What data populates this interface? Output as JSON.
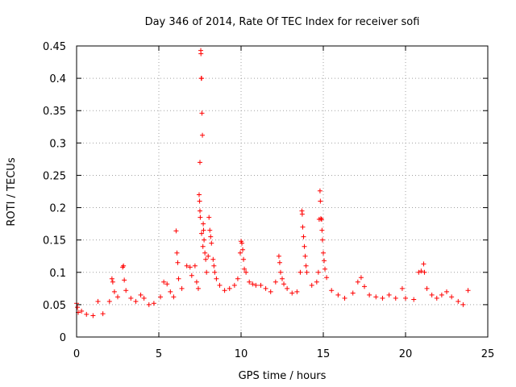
{
  "chart_data": {
    "type": "scatter",
    "title": "Day 346 of 2014, Rate Of TEC Index for receiver sofi",
    "xlabel": "GPS time / hours",
    "ylabel": "ROTI / TECUs",
    "xlim": [
      0,
      25
    ],
    "ylim": [
      0,
      0.45
    ],
    "x_ticks": [
      0,
      5,
      10,
      15,
      20,
      25
    ],
    "x_tick_labels": [
      "0",
      "5",
      "10",
      "15",
      "20",
      "25"
    ],
    "y_ticks": [
      0,
      0.05,
      0.1,
      0.15,
      0.2,
      0.25,
      0.3,
      0.35,
      0.4,
      0.45
    ],
    "y_tick_labels": [
      "0",
      "0.05",
      "0.1",
      "0.15",
      "0.2",
      "0.25",
      "0.3",
      "0.35",
      "0.4",
      "0.45"
    ],
    "grid": true,
    "marker": "+",
    "color": "#ff0000",
    "series": [
      {
        "name": "ROTI",
        "points": [
          [
            0.0,
            0.052
          ],
          [
            0.05,
            0.046
          ],
          [
            0.1,
            0.038
          ],
          [
            0.3,
            0.04
          ],
          [
            0.6,
            0.035
          ],
          [
            1.0,
            0.033
          ],
          [
            1.3,
            0.055
          ],
          [
            1.6,
            0.036
          ],
          [
            2.0,
            0.055
          ],
          [
            2.15,
            0.09
          ],
          [
            2.2,
            0.085
          ],
          [
            2.3,
            0.07
          ],
          [
            2.5,
            0.062
          ],
          [
            2.8,
            0.108
          ],
          [
            2.85,
            0.11
          ],
          [
            2.9,
            0.088
          ],
          [
            3.0,
            0.072
          ],
          [
            3.3,
            0.06
          ],
          [
            3.6,
            0.055
          ],
          [
            3.9,
            0.065
          ],
          [
            4.1,
            0.06
          ],
          [
            4.4,
            0.05
          ],
          [
            4.7,
            0.052
          ],
          [
            5.1,
            0.062
          ],
          [
            5.3,
            0.085
          ],
          [
            5.5,
            0.082
          ],
          [
            5.7,
            0.07
          ],
          [
            5.9,
            0.062
          ],
          [
            6.05,
            0.164
          ],
          [
            6.1,
            0.13
          ],
          [
            6.15,
            0.115
          ],
          [
            6.2,
            0.09
          ],
          [
            6.4,
            0.075
          ],
          [
            6.7,
            0.11
          ],
          [
            6.9,
            0.108
          ],
          [
            7.0,
            0.095
          ],
          [
            7.2,
            0.11
          ],
          [
            7.3,
            0.085
          ],
          [
            7.4,
            0.075
          ],
          [
            7.45,
            0.22
          ],
          [
            7.48,
            0.21
          ],
          [
            7.5,
            0.195
          ],
          [
            7.52,
            0.185
          ],
          [
            7.55,
            0.443
          ],
          [
            7.56,
            0.438
          ],
          [
            7.58,
            0.4
          ],
          [
            7.6,
            0.4
          ],
          [
            7.62,
            0.346
          ],
          [
            7.65,
            0.312
          ],
          [
            7.5,
            0.27
          ],
          [
            7.7,
            0.175
          ],
          [
            7.72,
            0.165
          ],
          [
            7.75,
            0.15
          ],
          [
            7.8,
            0.13
          ],
          [
            7.85,
            0.12
          ],
          [
            7.6,
            0.16
          ],
          [
            7.68,
            0.14
          ],
          [
            7.9,
            0.1
          ],
          [
            8.0,
            0.125
          ],
          [
            8.05,
            0.185
          ],
          [
            8.1,
            0.165
          ],
          [
            8.15,
            0.155
          ],
          [
            8.2,
            0.145
          ],
          [
            8.3,
            0.12
          ],
          [
            8.35,
            0.11
          ],
          [
            8.4,
            0.1
          ],
          [
            8.5,
            0.09
          ],
          [
            8.7,
            0.08
          ],
          [
            9.0,
            0.072
          ],
          [
            9.3,
            0.075
          ],
          [
            9.6,
            0.08
          ],
          [
            9.8,
            0.09
          ],
          [
            9.95,
            0.13
          ],
          [
            10.0,
            0.148
          ],
          [
            10.05,
            0.145
          ],
          [
            10.1,
            0.135
          ],
          [
            10.15,
            0.12
          ],
          [
            10.2,
            0.105
          ],
          [
            10.3,
            0.1
          ],
          [
            10.5,
            0.085
          ],
          [
            10.7,
            0.082
          ],
          [
            10.9,
            0.08
          ],
          [
            11.2,
            0.08
          ],
          [
            11.5,
            0.075
          ],
          [
            11.8,
            0.07
          ],
          [
            12.1,
            0.085
          ],
          [
            12.3,
            0.125
          ],
          [
            12.35,
            0.115
          ],
          [
            12.4,
            0.1
          ],
          [
            12.5,
            0.09
          ],
          [
            12.6,
            0.082
          ],
          [
            12.8,
            0.075
          ],
          [
            13.1,
            0.068
          ],
          [
            13.4,
            0.07
          ],
          [
            13.6,
            0.1
          ],
          [
            13.7,
            0.195
          ],
          [
            13.72,
            0.19
          ],
          [
            13.75,
            0.17
          ],
          [
            13.8,
            0.155
          ],
          [
            13.85,
            0.14
          ],
          [
            13.9,
            0.125
          ],
          [
            13.95,
            0.11
          ],
          [
            14.0,
            0.1
          ],
          [
            14.3,
            0.08
          ],
          [
            14.6,
            0.085
          ],
          [
            14.7,
            0.1
          ],
          [
            14.75,
            0.182
          ],
          [
            14.8,
            0.226
          ],
          [
            14.82,
            0.21
          ],
          [
            14.85,
            0.183
          ],
          [
            14.9,
            0.182
          ],
          [
            14.92,
            0.165
          ],
          [
            14.95,
            0.15
          ],
          [
            15.0,
            0.13
          ],
          [
            15.05,
            0.118
          ],
          [
            15.1,
            0.105
          ],
          [
            15.2,
            0.092
          ],
          [
            15.5,
            0.072
          ],
          [
            15.9,
            0.065
          ],
          [
            16.3,
            0.06
          ],
          [
            16.8,
            0.068
          ],
          [
            17.1,
            0.085
          ],
          [
            17.3,
            0.092
          ],
          [
            17.5,
            0.078
          ],
          [
            17.8,
            0.065
          ],
          [
            18.2,
            0.062
          ],
          [
            18.6,
            0.06
          ],
          [
            19.0,
            0.065
          ],
          [
            19.4,
            0.06
          ],
          [
            19.8,
            0.075
          ],
          [
            20.0,
            0.06
          ],
          [
            20.5,
            0.058
          ],
          [
            20.8,
            0.1
          ],
          [
            20.95,
            0.102
          ],
          [
            21.1,
            0.113
          ],
          [
            21.15,
            0.1
          ],
          [
            21.3,
            0.075
          ],
          [
            21.6,
            0.065
          ],
          [
            21.9,
            0.06
          ],
          [
            22.2,
            0.065
          ],
          [
            22.5,
            0.07
          ],
          [
            22.8,
            0.062
          ],
          [
            23.2,
            0.055
          ],
          [
            23.5,
            0.05
          ],
          [
            23.8,
            0.072
          ]
        ]
      }
    ]
  }
}
